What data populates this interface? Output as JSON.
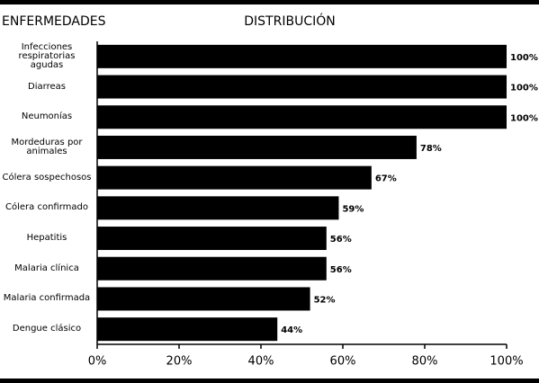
{
  "chart_data": {
    "type": "barh",
    "category_heading": "ENFERMEDADES",
    "value_heading": "DISTRIBUCIÓN",
    "categories": [
      "Infecciones respiratorias agudas",
      "Diarreas",
      "Neumonías",
      "Mordeduras por animales",
      "Cólera sospechosos",
      "Cólera confirmado",
      "Hepatitis",
      "Malaria clínica",
      "Malaria confirmada",
      "Dengue clásico"
    ],
    "values": [
      100,
      100,
      100,
      78,
      67,
      59,
      56,
      56,
      52,
      44
    ],
    "value_labels": [
      "100%",
      "100%",
      "100%",
      "78%",
      "67%",
      "59%",
      "56%",
      "56%",
      "52%",
      "44%"
    ],
    "color": "#000000",
    "xlim": [
      0,
      100
    ],
    "xticks": [
      {
        "value": 0,
        "label": "0%"
      },
      {
        "value": 20,
        "label": "20%"
      },
      {
        "value": 40,
        "label": "40%"
      },
      {
        "value": 60,
        "label": "60%"
      },
      {
        "value": 80,
        "label": "80%"
      },
      {
        "value": 100,
        "label": "100%"
      }
    ]
  }
}
